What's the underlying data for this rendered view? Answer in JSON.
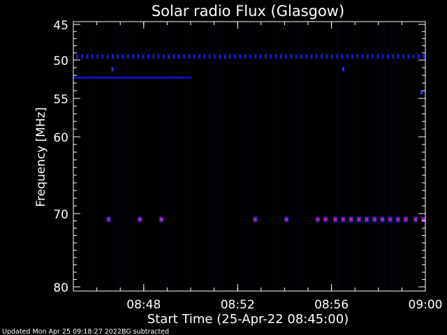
{
  "chart_data": {
    "type": "heatmap",
    "title": "Solar radio Flux (Glasgow)",
    "xlabel": "Start Time (25-Apr-22 08:45:00)",
    "ylabel": "Frequency [MHz]",
    "xlim": [
      "08:45",
      "09:00"
    ],
    "ylim": [
      45,
      80
    ],
    "y_scale": "nonlinear (as printed ticks)",
    "x_ticks": [
      "08:48",
      "08:52",
      "08:56",
      "09:00"
    ],
    "y_ticks": [
      45,
      50,
      55,
      60,
      70,
      80
    ],
    "grid": false,
    "background_color": "#000000",
    "foreground_color": "#ffffff",
    "features": [
      {
        "kind": "dotted-line",
        "freq_mhz": 49.5,
        "start": "08:45",
        "end": "09:00",
        "color": "#1a1aff"
      },
      {
        "kind": "solid-line",
        "freq_mhz": 52.3,
        "start": "08:45",
        "end": "08:50",
        "color": "#1010c8"
      },
      {
        "kind": "spot",
        "freq_mhz": 51.2,
        "time": "08:46:40",
        "color": "#2a2aff"
      },
      {
        "kind": "spot",
        "freq_mhz": 51.2,
        "time": "08:56:30",
        "color": "#2a2aff"
      },
      {
        "kind": "spot",
        "freq_mhz": 54.2,
        "time": "08:59:50",
        "color": "#2a2aff"
      },
      {
        "kind": "bursts",
        "freq_mhz": 70.8,
        "color": "#cc2288",
        "times": [
          "08:46:30",
          "08:47:50",
          "08:48:45",
          "08:52:45",
          "08:54:05",
          "08:55:25",
          "08:55:45",
          "08:56:10",
          "08:56:30",
          "08:56:50",
          "08:57:10",
          "08:57:30",
          "08:57:50",
          "08:58:10",
          "08:58:30",
          "08:58:50",
          "08:59:10",
          "08:59:35",
          "08:59:55"
        ]
      }
    ]
  },
  "footer": {
    "updated": "Updated Mon Apr 25 09:18:27 2022",
    "note": "BG subtracted"
  }
}
